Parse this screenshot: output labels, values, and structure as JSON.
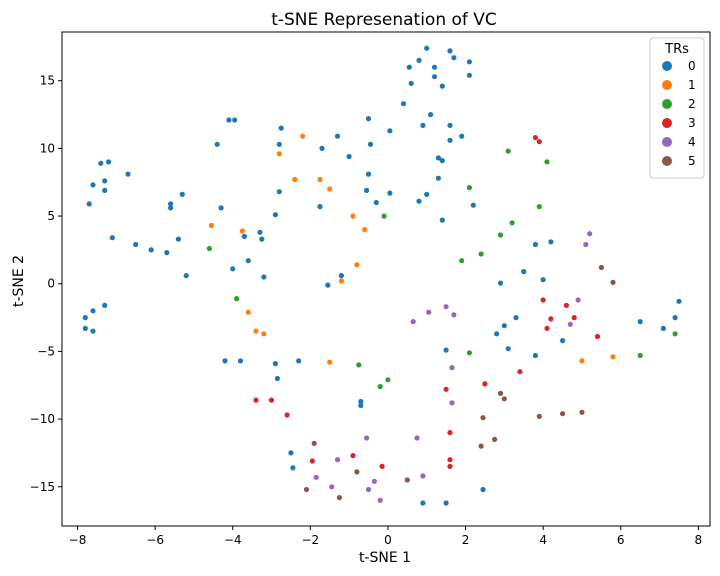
{
  "chart_data": {
    "type": "scatter",
    "title": "t-SNE Represenation of VC",
    "xlabel": "t-SNE 1",
    "ylabel": "t-SNE 2",
    "xlim": [
      -8.4,
      8.3
    ],
    "ylim": [
      -17.9,
      18.6
    ],
    "xticks": [
      -8,
      -6,
      -4,
      -2,
      0,
      2,
      4,
      6,
      8
    ],
    "yticks": [
      -15,
      -10,
      -5,
      0,
      5,
      10,
      15
    ],
    "xtick_labels": [
      "−8",
      "−6",
      "−4",
      "−2",
      "0",
      "2",
      "4",
      "6",
      "8"
    ],
    "ytick_labels": [
      "−15",
      "−10",
      "−5",
      "0",
      "5",
      "10",
      "15"
    ],
    "grid": false,
    "legend": {
      "title": "TRs",
      "position": "top-right"
    },
    "series": [
      {
        "name": "0",
        "color": "#1f77b4",
        "points": [
          [
            1.0,
            17.4
          ],
          [
            1.6,
            17.2
          ],
          [
            1.7,
            16.7
          ],
          [
            2.1,
            16.4
          ],
          [
            0.8,
            16.5
          ],
          [
            0.55,
            16.0
          ],
          [
            1.2,
            16.0
          ],
          [
            0.6,
            14.8
          ],
          [
            1.2,
            15.3
          ],
          [
            1.4,
            14.6
          ],
          [
            2.1,
            15.4
          ],
          [
            0.4,
            13.3
          ],
          [
            1.1,
            12.5
          ],
          [
            1.6,
            11.7
          ],
          [
            0.9,
            11.7
          ],
          [
            1.9,
            10.9
          ],
          [
            1.6,
            10.6
          ],
          [
            1.3,
            9.3
          ],
          [
            1.4,
            9.1
          ],
          [
            -0.5,
            12.2
          ],
          [
            0.05,
            11.3
          ],
          [
            -1.3,
            10.9
          ],
          [
            -0.45,
            10.3
          ],
          [
            -1.0,
            9.4
          ],
          [
            -1.7,
            10.0
          ],
          [
            -2.75,
            11.5
          ],
          [
            -2.8,
            10.3
          ],
          [
            -4.1,
            12.1
          ],
          [
            -3.95,
            12.1
          ],
          [
            -4.4,
            10.3
          ],
          [
            -7.2,
            9.0
          ],
          [
            -7.4,
            8.9
          ],
          [
            -6.7,
            8.1
          ],
          [
            -7.3,
            7.6
          ],
          [
            -7.6,
            7.3
          ],
          [
            -7.3,
            6.9
          ],
          [
            -2.8,
            6.8
          ],
          [
            -0.55,
            6.9
          ],
          [
            0.05,
            6.7
          ],
          [
            -0.3,
            6.0
          ],
          [
            -0.5,
            8.1
          ],
          [
            1.3,
            7.8
          ],
          [
            1.0,
            6.6
          ],
          [
            0.8,
            6.1
          ],
          [
            2.2,
            5.8
          ],
          [
            -5.3,
            6.6
          ],
          [
            -5.6,
            5.6
          ],
          [
            -5.6,
            5.9
          ],
          [
            -1.75,
            5.7
          ],
          [
            -2.9,
            5.1
          ],
          [
            -7.7,
            5.9
          ],
          [
            -4.3,
            5.6
          ],
          [
            -3.3,
            3.8
          ],
          [
            -3.25,
            3.3
          ],
          [
            -3.7,
            3.5
          ],
          [
            -5.4,
            3.3
          ],
          [
            -7.1,
            3.4
          ],
          [
            -6.5,
            2.9
          ],
          [
            -6.1,
            2.5
          ],
          [
            -5.7,
            2.3
          ],
          [
            -3.6,
            1.7
          ],
          [
            -4.0,
            1.1
          ],
          [
            -5.2,
            0.6
          ],
          [
            -3.2,
            0.5
          ],
          [
            -1.2,
            0.6
          ],
          [
            -1.55,
            -0.1
          ],
          [
            3.8,
            2.9
          ],
          [
            4.2,
            3.1
          ],
          [
            3.5,
            0.9
          ],
          [
            4.0,
            0.3
          ],
          [
            2.9,
            0.05
          ],
          [
            1.4,
            4.7
          ],
          [
            -7.3,
            -1.6
          ],
          [
            -7.6,
            -2.0
          ],
          [
            -7.8,
            -2.5
          ],
          [
            -7.8,
            -3.3
          ],
          [
            -7.6,
            -3.5
          ],
          [
            3.3,
            -2.5
          ],
          [
            3.0,
            -3.1
          ],
          [
            2.8,
            -3.7
          ],
          [
            3.1,
            -4.8
          ],
          [
            3.8,
            -5.3
          ],
          [
            4.5,
            -4.2
          ],
          [
            6.5,
            -2.8
          ],
          [
            7.1,
            -3.3
          ],
          [
            7.4,
            -2.5
          ],
          [
            7.5,
            -1.3
          ],
          [
            1.5,
            -4.9
          ],
          [
            -3.8,
            -5.7
          ],
          [
            -4.2,
            -5.7
          ],
          [
            -2.3,
            -5.7
          ],
          [
            -2.9,
            -5.9
          ],
          [
            -2.85,
            -7.0
          ],
          [
            -0.7,
            -8.7
          ],
          [
            -0.7,
            -9.0
          ],
          [
            -2.5,
            -12.5
          ],
          [
            -2.45,
            -13.6
          ],
          [
            0.9,
            -16.2
          ],
          [
            1.5,
            -16.2
          ],
          [
            2.45,
            -15.2
          ]
        ]
      },
      {
        "name": "1",
        "color": "#ff7f0e",
        "points": [
          [
            -2.2,
            10.9
          ],
          [
            -2.8,
            9.6
          ],
          [
            -2.4,
            7.7
          ],
          [
            -1.75,
            7.7
          ],
          [
            -1.5,
            7.0
          ],
          [
            -0.9,
            5.0
          ],
          [
            -0.6,
            4.0
          ],
          [
            -4.55,
            4.3
          ],
          [
            -3.75,
            3.9
          ],
          [
            -0.8,
            1.4
          ],
          [
            -1.2,
            0.2
          ],
          [
            -3.6,
            -2.1
          ],
          [
            -3.4,
            -3.5
          ],
          [
            -3.2,
            -3.7
          ],
          [
            -1.5,
            -5.8
          ],
          [
            5.0,
            -5.7
          ],
          [
            5.8,
            -5.4
          ]
        ]
      },
      {
        "name": "2",
        "color": "#2ca02c",
        "points": [
          [
            3.1,
            9.8
          ],
          [
            4.1,
            9.0
          ],
          [
            2.1,
            7.1
          ],
          [
            3.9,
            5.7
          ],
          [
            3.2,
            4.5
          ],
          [
            2.9,
            3.6
          ],
          [
            2.4,
            2.2
          ],
          [
            1.9,
            1.7
          ],
          [
            -0.1,
            5.0
          ],
          [
            -4.6,
            2.6
          ],
          [
            -3.9,
            -1.1
          ],
          [
            2.1,
            -5.1
          ],
          [
            -0.75,
            -6.0
          ],
          [
            0.0,
            -7.1
          ],
          [
            -0.2,
            -7.6
          ],
          [
            6.5,
            -5.3
          ],
          [
            7.4,
            -3.7
          ]
        ]
      },
      {
        "name": "3",
        "color": "#d62728",
        "points": [
          [
            3.8,
            10.8
          ],
          [
            3.9,
            10.5
          ],
          [
            4.0,
            -1.2
          ],
          [
            4.6,
            -1.6
          ],
          [
            4.2,
            -2.6
          ],
          [
            4.8,
            -2.5
          ],
          [
            4.1,
            -3.3
          ],
          [
            5.4,
            -3.9
          ],
          [
            3.4,
            -6.5
          ],
          [
            1.5,
            -7.8
          ],
          [
            2.5,
            -7.4
          ],
          [
            -3.4,
            -8.6
          ],
          [
            -3.0,
            -8.6
          ],
          [
            -2.6,
            -9.7
          ],
          [
            1.6,
            -11.0
          ],
          [
            1.6,
            -13.0
          ],
          [
            -0.9,
            -12.7
          ],
          [
            -1.95,
            -13.1
          ],
          [
            -0.15,
            -13.5
          ],
          [
            1.6,
            -13.5
          ]
        ]
      },
      {
        "name": "4",
        "color": "#9467bd",
        "points": [
          [
            5.2,
            3.7
          ],
          [
            5.1,
            2.9
          ],
          [
            4.9,
            -1.2
          ],
          [
            4.7,
            -3.0
          ],
          [
            1.5,
            -1.7
          ],
          [
            1.7,
            -2.3
          ],
          [
            1.05,
            -2.1
          ],
          [
            0.65,
            -2.8
          ],
          [
            1.65,
            -6.2
          ],
          [
            1.65,
            -8.8
          ],
          [
            -0.55,
            -11.4
          ],
          [
            0.75,
            -11.4
          ],
          [
            -1.3,
            -13.0
          ],
          [
            -0.35,
            -14.6
          ],
          [
            -1.85,
            -14.3
          ],
          [
            -1.45,
            -15.0
          ],
          [
            -0.5,
            -15.2
          ],
          [
            -0.2,
            -16.0
          ],
          [
            0.9,
            -14.2
          ]
        ]
      },
      {
        "name": "5",
        "color": "#8c564b",
        "points": [
          [
            5.5,
            1.2
          ],
          [
            5.8,
            0.1
          ],
          [
            2.9,
            -8.1
          ],
          [
            3.0,
            -8.5
          ],
          [
            3.9,
            -9.8
          ],
          [
            4.5,
            -9.6
          ],
          [
            5.0,
            -9.5
          ],
          [
            2.45,
            -9.9
          ],
          [
            2.75,
            -11.5
          ],
          [
            2.4,
            -12.0
          ],
          [
            -1.9,
            -11.8
          ],
          [
            -0.8,
            -13.9
          ],
          [
            0.5,
            -14.5
          ],
          [
            -2.1,
            -15.2
          ],
          [
            -1.25,
            -15.8
          ]
        ]
      }
    ]
  }
}
